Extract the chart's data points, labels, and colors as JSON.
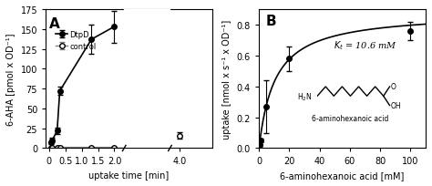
{
  "panel_A": {
    "DtpD_x": [
      0.05,
      0.1,
      0.25,
      0.33,
      1.3,
      2.0
    ],
    "DtpD_y": [
      7,
      10,
      22,
      72,
      137,
      153
    ],
    "DtpD_yerr": [
      2,
      3,
      4,
      5,
      18,
      20
    ],
    "control_x": [
      0.05,
      0.1,
      0.25,
      0.33,
      1.3,
      2.0,
      4.0
    ],
    "control_y": [
      0.5,
      0.5,
      0.5,
      1,
      1,
      1,
      16
    ],
    "control_yerr": [
      0.5,
      0.5,
      0.5,
      0.5,
      0.5,
      0.5,
      4
    ],
    "xlabel": "uptake time [min]",
    "ylabel": "6-AHA [pmol x OD⁻¹]",
    "ylim": [
      0,
      175
    ],
    "yticks": [
      0,
      25,
      50,
      75,
      100,
      125,
      150,
      175
    ],
    "label_A": "A",
    "legend_DtpD": "DtpD",
    "legend_control": "control"
  },
  "panel_B": {
    "x": [
      0.5,
      1.0,
      5.0,
      20.0,
      100.0
    ],
    "y": [
      0.02,
      0.05,
      0.27,
      0.58,
      0.76
    ],
    "yerr": [
      0.005,
      0.01,
      0.17,
      0.08,
      0.06
    ],
    "Vmax": 0.88,
    "Kt": 10.6,
    "xlabel": "6-aminohexanoic acid [mM]",
    "ylabel": "uptake [nmol x s⁻¹ x OD⁻¹]",
    "ylim": [
      0,
      0.9
    ],
    "yticks": [
      0.0,
      0.2,
      0.4,
      0.6,
      0.8
    ],
    "xlim": [
      0,
      110
    ],
    "xticks": [
      0,
      20,
      40,
      60,
      80,
      100
    ],
    "label_B": "B",
    "kt_text": "$K_t$ = 10.6 mM",
    "molecule_label": "6-aminohexanoic acid"
  },
  "background_color": "#ffffff"
}
